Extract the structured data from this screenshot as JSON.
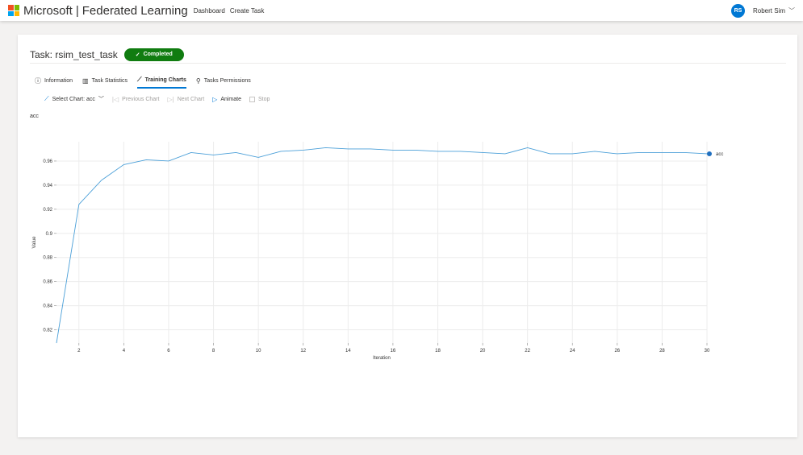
{
  "header": {
    "brand": "Microsoft",
    "separator": "|",
    "product": "Federated Learning",
    "nav": [
      "Dashboard",
      "Create Task"
    ],
    "user_initials": "RS",
    "user_name": "Robert Sim",
    "logo_colors": [
      "#f25022",
      "#7fba00",
      "#00a4ef",
      "#ffb900"
    ]
  },
  "task": {
    "title": "Task: rsim_test_task",
    "status": "Completed",
    "status_color": "#107c10"
  },
  "tabs": [
    {
      "label": "Information",
      "icon": "info-icon"
    },
    {
      "label": "Task Statistics",
      "icon": "bar-chart-icon"
    },
    {
      "label": "Training Charts",
      "icon": "line-chart-icon",
      "active": true
    },
    {
      "label": "Tasks Permissions",
      "icon": "key-icon"
    }
  ],
  "commands": {
    "select_chart": "Select Chart: acc",
    "previous": "Previous Chart",
    "next": "Next Chart",
    "animate": "Animate",
    "stop": "Stop"
  },
  "chart_label": "acc",
  "chart_data": {
    "type": "line",
    "title": "",
    "xlabel": "Iteration",
    "ylabel": "Value",
    "x": [
      1,
      2,
      3,
      4,
      5,
      6,
      7,
      8,
      9,
      10,
      11,
      12,
      13,
      14,
      15,
      16,
      17,
      18,
      19,
      20,
      21,
      22,
      23,
      24,
      25,
      26,
      27,
      28,
      29,
      30
    ],
    "series": [
      {
        "name": "acc",
        "color": "#4a9fd8",
        "values": [
          0.809,
          0.924,
          0.944,
          0.957,
          0.961,
          0.96,
          0.967,
          0.965,
          0.967,
          0.963,
          0.968,
          0.969,
          0.971,
          0.97,
          0.97,
          0.969,
          0.969,
          0.968,
          0.968,
          0.967,
          0.966,
          0.971,
          0.966,
          0.966,
          0.968,
          0.966,
          0.967,
          0.967,
          0.967,
          0.966
        ]
      }
    ],
    "xticks": [
      2,
      4,
      6,
      8,
      10,
      12,
      14,
      16,
      18,
      20,
      22,
      24,
      26,
      28,
      30
    ],
    "yticks": [
      0.82,
      0.84,
      0.86,
      0.88,
      0.9,
      0.92,
      0.94,
      0.96
    ],
    "xlim": [
      1,
      30
    ],
    "ylim": [
      0.809,
      0.976
    ],
    "grid": true,
    "legend": "right"
  }
}
